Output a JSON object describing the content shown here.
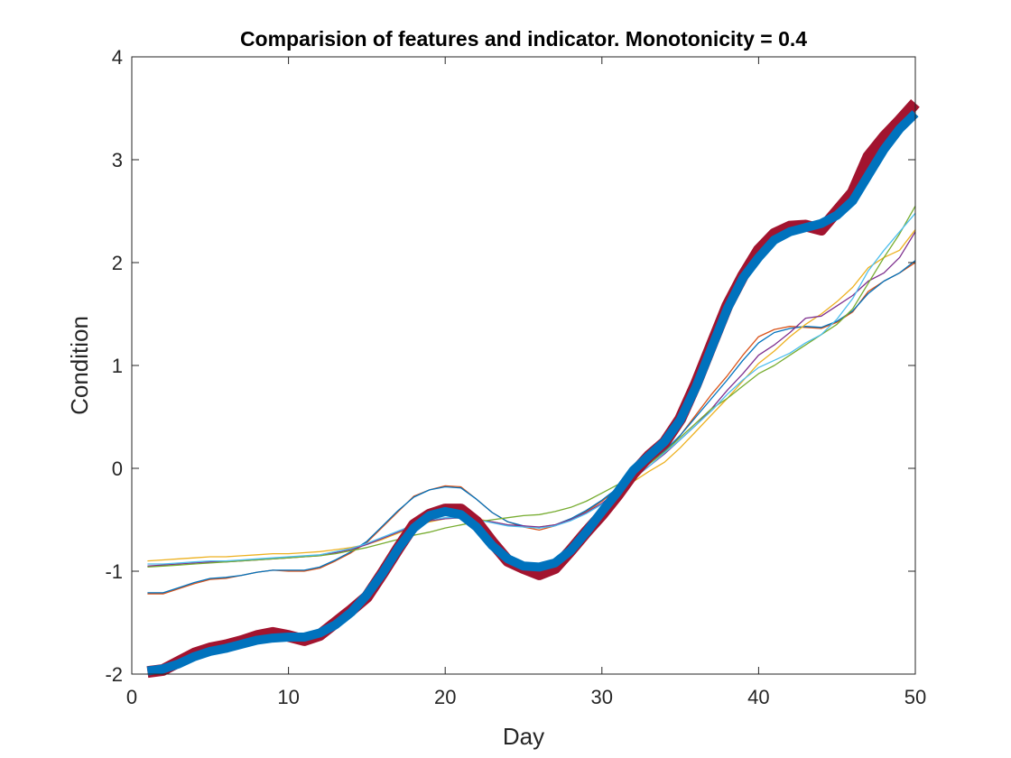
{
  "chart_data": {
    "type": "line",
    "title": "Comparision of features and indicator. Monotonicity = 0.4",
    "xlabel": "Day",
    "ylabel": "Condition",
    "xlim": [
      0,
      50
    ],
    "ylim": [
      -2,
      4
    ],
    "xticks": [
      0,
      10,
      20,
      30,
      40,
      50
    ],
    "yticks": [
      -2,
      -1,
      0,
      1,
      2,
      3,
      4
    ],
    "grid": false,
    "legend": false,
    "x": [
      1,
      2,
      3,
      4,
      5,
      6,
      7,
      8,
      9,
      10,
      11,
      12,
      13,
      14,
      15,
      16,
      17,
      18,
      19,
      20,
      21,
      22,
      23,
      24,
      25,
      26,
      27,
      28,
      29,
      30,
      31,
      32,
      33,
      34,
      35,
      36,
      37,
      38,
      39,
      40,
      41,
      42,
      43,
      44,
      45,
      46,
      47,
      48,
      49,
      50
    ],
    "series": [
      {
        "color": "#A2142F",
        "width": "thick",
        "values": [
          -1.98,
          -1.96,
          -1.88,
          -1.8,
          -1.75,
          -1.72,
          -1.68,
          -1.63,
          -1.6,
          -1.63,
          -1.67,
          -1.62,
          -1.5,
          -1.38,
          -1.25,
          -1.02,
          -0.78,
          -0.55,
          -0.45,
          -0.4,
          -0.4,
          -0.52,
          -0.72,
          -0.9,
          -0.97,
          -1.03,
          -0.97,
          -0.8,
          -0.62,
          -0.45,
          -0.26,
          -0.05,
          0.12,
          0.25,
          0.48,
          0.82,
          1.2,
          1.58,
          1.87,
          2.12,
          2.28,
          2.35,
          2.36,
          2.32,
          2.5,
          2.68,
          3.03,
          3.22,
          3.38,
          3.55
        ]
      },
      {
        "color": "#0072BD",
        "width": "thick",
        "values": [
          -1.97,
          -1.95,
          -1.9,
          -1.83,
          -1.78,
          -1.75,
          -1.71,
          -1.67,
          -1.65,
          -1.64,
          -1.64,
          -1.6,
          -1.52,
          -1.4,
          -1.23,
          -1.02,
          -0.78,
          -0.58,
          -0.46,
          -0.42,
          -0.45,
          -0.57,
          -0.75,
          -0.88,
          -0.95,
          -0.96,
          -0.92,
          -0.8,
          -0.62,
          -0.42,
          -0.23,
          -0.02,
          0.12,
          0.26,
          0.47,
          0.79,
          1.17,
          1.55,
          1.85,
          2.05,
          2.22,
          2.3,
          2.34,
          2.38,
          2.46,
          2.6,
          2.85,
          3.1,
          3.3,
          3.45
        ]
      },
      {
        "color": "#D95319",
        "values": [
          -1.22,
          -1.22,
          -1.17,
          -1.12,
          -1.08,
          -1.07,
          -1.04,
          -1.01,
          -0.99,
          -1.0,
          -1.0,
          -0.97,
          -0.9,
          -0.82,
          -0.72,
          -0.57,
          -0.42,
          -0.27,
          -0.21,
          -0.17,
          -0.18,
          -0.3,
          -0.43,
          -0.52,
          -0.57,
          -0.6,
          -0.56,
          -0.5,
          -0.42,
          -0.32,
          -0.2,
          -0.08,
          0.05,
          0.16,
          0.32,
          0.52,
          0.72,
          0.9,
          1.1,
          1.28,
          1.35,
          1.38,
          1.37,
          1.36,
          1.42,
          1.52,
          1.72,
          1.82,
          1.9,
          2.0
        ]
      },
      {
        "color": "#0072BD",
        "values": [
          -1.21,
          -1.21,
          -1.16,
          -1.11,
          -1.07,
          -1.06,
          -1.04,
          -1.01,
          -0.99,
          -0.99,
          -0.99,
          -0.96,
          -0.89,
          -0.81,
          -0.71,
          -0.56,
          -0.41,
          -0.28,
          -0.21,
          -0.18,
          -0.19,
          -0.3,
          -0.43,
          -0.52,
          -0.56,
          -0.58,
          -0.55,
          -0.49,
          -0.41,
          -0.31,
          -0.19,
          -0.07,
          0.06,
          0.17,
          0.32,
          0.5,
          0.68,
          0.86,
          1.05,
          1.22,
          1.32,
          1.36,
          1.38,
          1.37,
          1.43,
          1.53,
          1.7,
          1.82,
          1.9,
          2.02
        ]
      },
      {
        "color": "#EDB120",
        "values": [
          -0.9,
          -0.89,
          -0.88,
          -0.87,
          -0.86,
          -0.86,
          -0.85,
          -0.84,
          -0.83,
          -0.83,
          -0.82,
          -0.81,
          -0.79,
          -0.77,
          -0.74,
          -0.69,
          -0.63,
          -0.57,
          -0.52,
          -0.49,
          -0.48,
          -0.49,
          -0.52,
          -0.55,
          -0.57,
          -0.57,
          -0.55,
          -0.5,
          -0.43,
          -0.34,
          -0.24,
          -0.13,
          -0.03,
          0.06,
          0.2,
          0.36,
          0.52,
          0.68,
          0.85,
          1.02,
          1.14,
          1.28,
          1.4,
          1.5,
          1.62,
          1.76,
          1.95,
          2.05,
          2.12,
          2.32
        ]
      },
      {
        "color": "#7E2F8E",
        "values": [
          -0.95,
          -0.94,
          -0.93,
          -0.92,
          -0.91,
          -0.91,
          -0.9,
          -0.89,
          -0.88,
          -0.87,
          -0.86,
          -0.85,
          -0.82,
          -0.79,
          -0.74,
          -0.68,
          -0.62,
          -0.56,
          -0.51,
          -0.49,
          -0.48,
          -0.5,
          -0.52,
          -0.55,
          -0.56,
          -0.57,
          -0.55,
          -0.5,
          -0.43,
          -0.34,
          -0.22,
          -0.1,
          0.02,
          0.14,
          0.28,
          0.42,
          0.58,
          0.76,
          0.92,
          1.1,
          1.2,
          1.32,
          1.46,
          1.48,
          1.58,
          1.68,
          1.82,
          1.9,
          2.05,
          2.3
        ]
      },
      {
        "color": "#77AC30",
        "values": [
          -0.96,
          -0.95,
          -0.94,
          -0.93,
          -0.92,
          -0.91,
          -0.9,
          -0.89,
          -0.88,
          -0.87,
          -0.86,
          -0.85,
          -0.83,
          -0.8,
          -0.77,
          -0.73,
          -0.69,
          -0.65,
          -0.62,
          -0.58,
          -0.55,
          -0.52,
          -0.5,
          -0.48,
          -0.46,
          -0.45,
          -0.42,
          -0.38,
          -0.32,
          -0.24,
          -0.16,
          -0.08,
          0.04,
          0.16,
          0.3,
          0.44,
          0.58,
          0.68,
          0.8,
          0.92,
          1.0,
          1.1,
          1.2,
          1.3,
          1.4,
          1.55,
          1.8,
          2.05,
          2.28,
          2.55
        ]
      },
      {
        "color": "#4DBEEE",
        "values": [
          -0.93,
          -0.93,
          -0.92,
          -0.91,
          -0.9,
          -0.9,
          -0.89,
          -0.88,
          -0.87,
          -0.86,
          -0.85,
          -0.84,
          -0.81,
          -0.78,
          -0.73,
          -0.67,
          -0.61,
          -0.55,
          -0.5,
          -0.48,
          -0.48,
          -0.5,
          -0.53,
          -0.56,
          -0.57,
          -0.58,
          -0.56,
          -0.51,
          -0.44,
          -0.35,
          -0.23,
          -0.1,
          0.02,
          0.15,
          0.28,
          0.42,
          0.56,
          0.72,
          0.86,
          0.98,
          1.05,
          1.12,
          1.22,
          1.3,
          1.45,
          1.65,
          1.92,
          2.12,
          2.3,
          2.48
        ]
      }
    ]
  }
}
